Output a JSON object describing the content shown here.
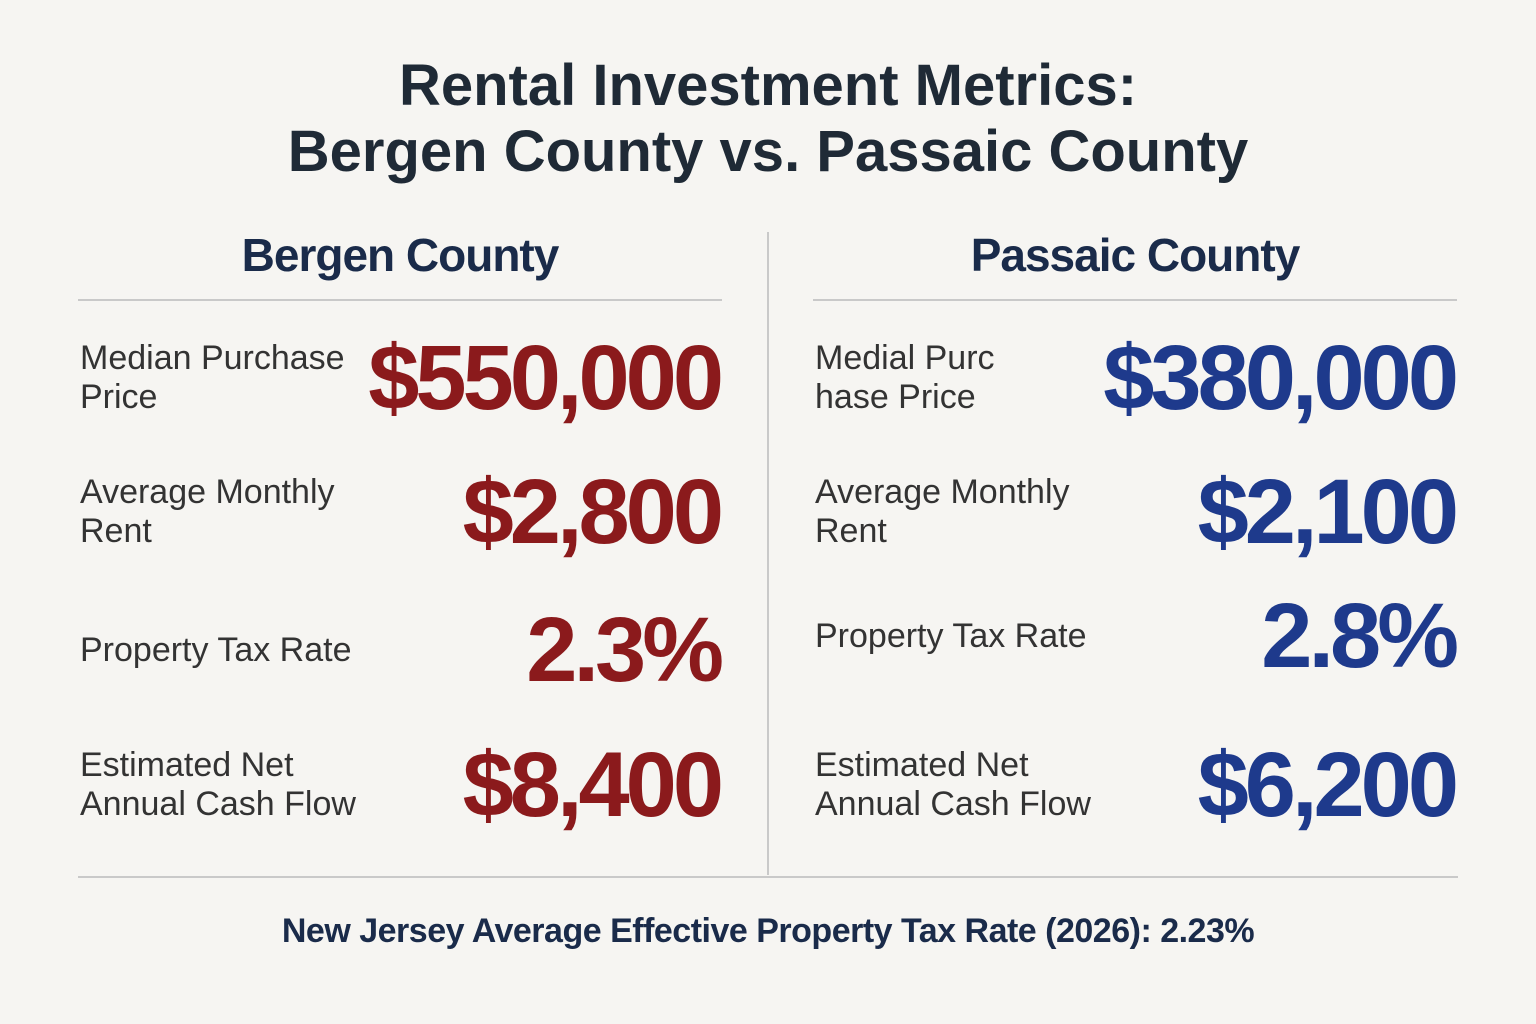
{
  "title": [
    "Rental Investment Metrics:",
    "Bergen County vs. Passaic County"
  ],
  "columns": [
    {
      "heading": "Bergen County",
      "color": "#8b1a1c",
      "metrics": [
        {
          "label": [
            "Median Purchase",
            "Price"
          ],
          "value": "$550,000"
        },
        {
          "label": [
            "Average Monthly",
            "Rent"
          ],
          "value": "$2,800"
        },
        {
          "label": [
            "Property Tax Rate"
          ],
          "value": "2.3%"
        },
        {
          "label": [
            "Estimated Net",
            "Annual Cash Flow"
          ],
          "value": "$8,400"
        }
      ]
    },
    {
      "heading": "Passaic County",
      "color": "#1e3a8c",
      "metrics": [
        {
          "label": [
            "Medial Purc",
            "hase Price"
          ],
          "value": "$380,000"
        },
        {
          "label": [
            "Average Monthly",
            "Rent"
          ],
          "value": "$2,100"
        },
        {
          "label": [
            "Property Tax Rate"
          ],
          "value": "2.8%"
        },
        {
          "label": [
            "Estimated Net",
            "Annual Cash Flow"
          ],
          "value": "$6,200"
        }
      ]
    }
  ],
  "footer": "New Jersey Average Effective Property Tax Rate (2026): 2.23%"
}
